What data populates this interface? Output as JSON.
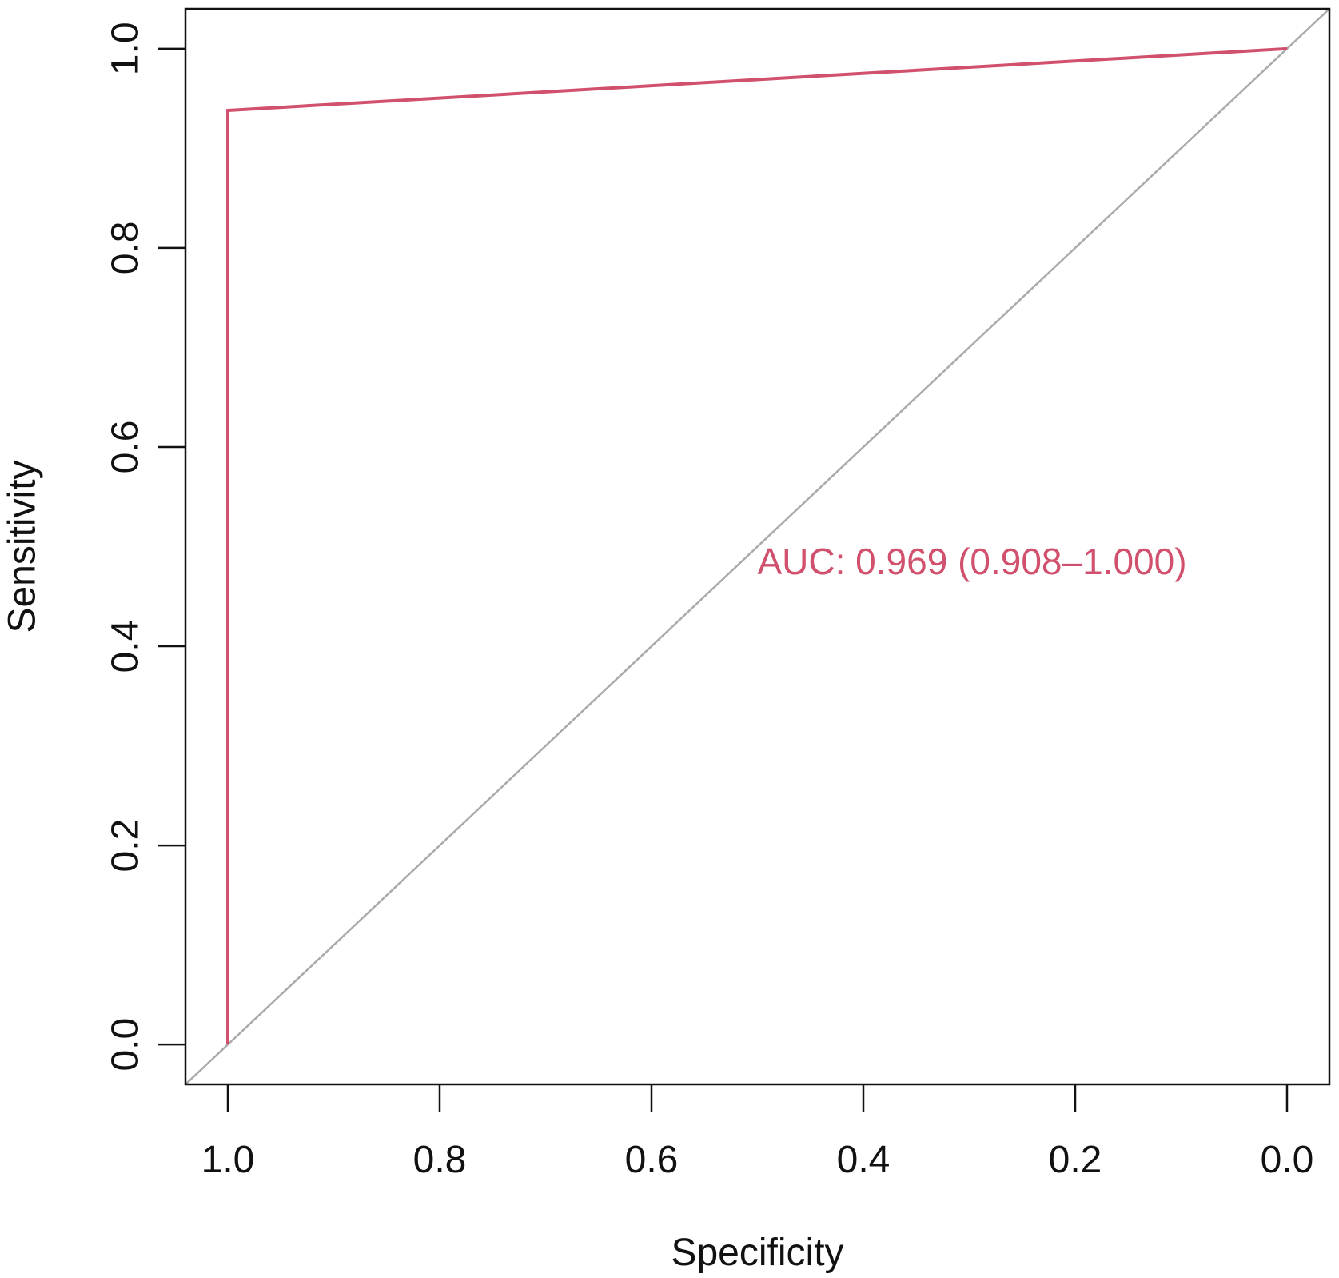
{
  "chart_data": {
    "type": "line",
    "title": "",
    "xlabel": "Specificity",
    "ylabel": "Sensitivity",
    "x_reversed": true,
    "xlim": [
      1.04,
      -0.04
    ],
    "ylim": [
      -0.04,
      1.04
    ],
    "x_ticks": [
      1.0,
      0.8,
      0.6,
      0.4,
      0.2,
      0.0
    ],
    "x_tick_labels": [
      "1.0",
      "0.8",
      "0.6",
      "0.4",
      "0.2",
      "0.0"
    ],
    "y_ticks": [
      0.0,
      0.2,
      0.4,
      0.6,
      0.8,
      1.0
    ],
    "y_tick_labels": [
      "0.0",
      "0.2",
      "0.4",
      "0.6",
      "0.8",
      "1.0"
    ],
    "grid": false,
    "series": [
      {
        "x": [
          1.0,
          1.0,
          0.0
        ],
        "y": [
          0.0,
          0.938,
          1.0
        ],
        "color": "#d0506e"
      }
    ],
    "reference_line": {
      "from": [
        1.04,
        -0.04
      ],
      "to": [
        -0.04,
        1.04
      ],
      "color": "#aaaaaa"
    },
    "annotations": [
      {
        "text": "AUC: 0.969 (0.908–1.000)",
        "x": 0.5,
        "y": 0.485,
        "color": "#d0506e"
      }
    ]
  }
}
